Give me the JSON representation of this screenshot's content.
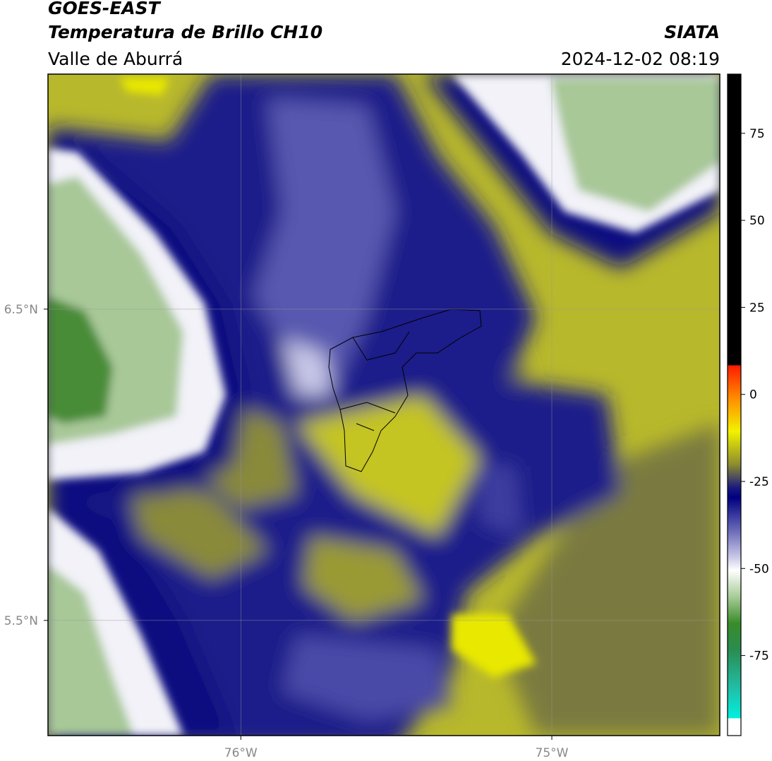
{
  "header": {
    "satellite": "GOES-EAST",
    "product": "Temperatura de Brillo CH10",
    "region": "Valle de Aburrá",
    "source": "SIATA",
    "datetime": "2024-12-02 08:19"
  },
  "map": {
    "xlim": [
      -76.62,
      -74.46
    ],
    "ylim": [
      5.13,
      7.255
    ],
    "lon_ticks": [
      {
        "value": -76,
        "label": "76°W"
      },
      {
        "value": -75,
        "label": "75°W"
      }
    ],
    "lat_ticks": [
      {
        "value": 6.5,
        "label": "6.5°N"
      },
      {
        "value": 5.5,
        "label": "5.5°N"
      }
    ]
  },
  "colorbar": {
    "lim": [
      -98,
      92
    ],
    "ticks": [
      75,
      50,
      25,
      0,
      -25,
      -50,
      -75
    ]
  }
}
